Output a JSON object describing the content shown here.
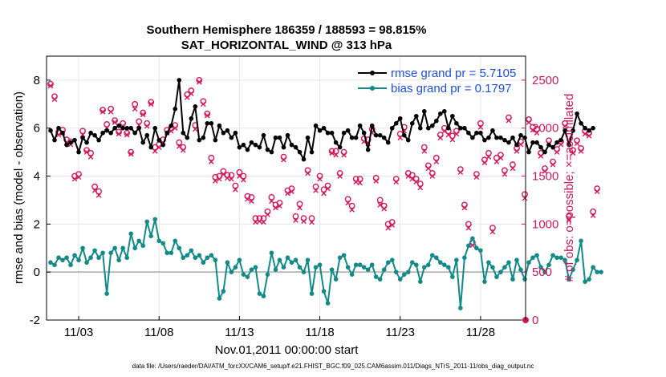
{
  "chart_data": {
    "type": "line",
    "title": "Southern Hemisphere 186359 / 188593 = 98.815%",
    "subtitle": "SAT_HORIZONTAL_WIND @ 313 hPa",
    "xlabel": "Nov.01,2011 00:00:00 start",
    "ylabel": "rmse and bias (model - observation)",
    "ylabel_right": "# of obs: o=possible; ×=assimilated",
    "footer": "data file: /Users/raeder/DAI/ATM_forcXX/CAM6_setup/f.e21.FHIST_BGC.f09_025.CAM6assim.011/Diags_NTrS_2011-11/obs_diag_output.nc",
    "xlim": [
      1.0,
      30.8
    ],
    "ylim": [
      -2,
      9
    ],
    "ylim_right": [
      0,
      2750
    ],
    "x_ticks": [
      {
        "x": 3,
        "label": "11/03"
      },
      {
        "x": 8,
        "label": "11/08"
      },
      {
        "x": 13,
        "label": "11/13"
      },
      {
        "x": 18,
        "label": "11/18"
      },
      {
        "x": 23,
        "label": "11/23"
      },
      {
        "x": 28,
        "label": "11/28"
      }
    ],
    "y_ticks": [
      "-2",
      "0",
      "2",
      "4",
      "6",
      "8"
    ],
    "y_ticks_right": [
      "0",
      "500",
      "1000",
      "1500",
      "2000",
      "2500"
    ],
    "grid": true,
    "legend_position": "top-right",
    "colors": {
      "rmse": "#000000",
      "bias": "#138a87",
      "obs": "#d4175c",
      "zero_line": "#bbbbbb"
    },
    "x_start": 1.25,
    "x_step": 0.25,
    "series": [
      {
        "name": "rmse grand pr = 5.7105",
        "values": [
          5.9,
          5.5,
          6.0,
          5.8,
          5.3,
          5.4,
          5.5,
          5.0,
          5.6,
          5.4,
          5.8,
          5.7,
          5.5,
          5.8,
          5.9,
          5.8,
          6.0,
          6.1,
          6.0,
          6.0,
          6.0,
          5.8,
          6.0,
          5.4,
          5.7,
          5.2,
          6.0,
          5.5,
          5.3,
          5.8,
          6.1,
          6.8,
          8.0,
          5.8,
          5.6,
          6.4,
          6.9,
          5.5,
          5.6,
          6.2,
          6.2,
          5.5,
          6.1,
          5.8,
          5.9,
          5.6,
          5.8,
          5.2,
          5.3,
          5.1,
          5.4,
          5.3,
          5.2,
          5.7,
          5.1,
          5.0,
          5.6,
          5.6,
          5.2,
          5.7,
          5.3,
          5.2,
          5.0,
          4.7,
          5.6,
          5.0,
          6.1,
          5.9,
          6.0,
          5.8,
          5.8,
          5.4,
          5.2,
          5.8,
          5.9,
          5.6,
          5.6,
          6.1,
          5.8,
          5.1,
          6.1,
          5.7,
          5.7,
          5.6,
          5.4,
          6.0,
          6.2,
          6.4,
          5.7,
          5.5,
          6.2,
          6.5,
          6.0,
          6.7,
          6.0,
          6.1,
          6.3,
          6.6,
          6.7,
          6.0,
          6.5,
          6.2,
          6.0,
          6.0,
          5.8,
          5.6,
          5.8,
          5.8,
          5.5,
          5.6,
          5.9,
          5.6,
          5.6,
          5.5,
          5.4,
          5.6,
          5.3,
          5.7,
          5.6,
          5.0,
          5.4,
          5.4,
          5.2,
          5.0,
          5.3,
          5.2,
          5.4,
          5.5,
          5.9,
          5.3,
          5.9,
          6.6,
          6.2,
          6.0,
          5.9,
          6.0
        ]
      },
      {
        "name": "bias grand pr = 0.1797",
        "values": [
          0.4,
          0.3,
          0.6,
          0.5,
          0.6,
          0.3,
          0.7,
          0.5,
          1.0,
          0.4,
          0.6,
          0.9,
          0.6,
          0.8,
          -0.9,
          0.8,
          1.0,
          0.5,
          1.0,
          0.6,
          1.6,
          1.0,
          1.3,
          1.1,
          2.1,
          1.5,
          2.2,
          1.3,
          1.2,
          0.8,
          0.8,
          1.3,
          1.0,
          0.6,
          0.7,
          0.9,
          0.6,
          0.7,
          0.4,
          0.6,
          0.7,
          0.5,
          -1.1,
          -0.8,
          0.4,
          0.0,
          0.2,
          0.5,
          -0.1,
          -0.2,
          0.1,
          0.2,
          -0.9,
          -1.0,
          -0.1,
          0.8,
          0.1,
          0.5,
          0.2,
          0.6,
          0.4,
          0.5,
          0.2,
          0.0,
          0.5,
          -0.9,
          0.2,
          0.3,
          -0.8,
          -1.3,
          0.1,
          -0.3,
          0.6,
          0.7,
          0.2,
          -0.1,
          0.3,
          0.3,
          0.2,
          0.1,
          0.3,
          -0.2,
          -0.3,
          0.1,
          0.4,
          0.5,
          0.0,
          -0.3,
          -0.1,
          0.0,
          0.4,
          0.3,
          -0.4,
          0.2,
          0.3,
          0.7,
          0.6,
          0.4,
          0.3,
          0.2,
          -0.2,
          0.5,
          -1.5,
          0.6,
          1.1,
          1.4,
          1.0,
          0.9,
          -0.4,
          0.4,
          0.2,
          -0.2,
          0.0,
          0.2,
          0.4,
          -0.3,
          0.5,
          0.1,
          -0.3,
          0.4,
          0.6,
          0.7,
          0.2,
          0.0,
          0.3,
          0.7,
          0.6,
          0.6,
          0.5,
          -0.3,
          0.1,
          0.5,
          1.3,
          -0.4,
          -0.3,
          0.2,
          0.0,
          0.0
        ]
      },
      {
        "name": "",
        "possible": [
          2460,
          2330,
          1960,
          1980,
          1880,
          1860,
          1500,
          1520,
          1970,
          1770,
          1740,
          1390,
          1340,
          2190,
          2040,
          2200,
          2080,
          1960,
          2050,
          1950,
          1750,
          2250,
          2070,
          2160,
          2050,
          2270,
          1800,
          1830,
          1880,
          1980,
          2000,
          2030,
          1850,
          1800,
          2350,
          2390,
          2030,
          2500,
          2280,
          2150,
          1690,
          1490,
          1500,
          1550,
          1510,
          1510,
          1400,
          1540,
          1500,
          1290,
          1280,
          1060,
          1060,
          1060,
          1130,
          1280,
          1200,
          1220,
          1700,
          1350,
          1370,
          1080,
          1210,
          1060,
          1560,
          1060,
          1390,
          1500,
          1360,
          1400,
          1760,
          1760,
          1530,
          1750,
          1260,
          1190,
          1470,
          1470,
          1890,
          1880,
          1990,
          1480,
          1250,
          1190,
          1000,
          1020,
          1470,
          1940,
          2010,
          1530,
          1510,
          1470,
          1420,
          1800,
          1610,
          1530,
          1690,
          1930,
          2000,
          1970,
          1920,
          1970,
          1570,
          1200,
          1000,
          810,
          1520,
          2050,
          1670,
          1740,
          960,
          1690,
          1720,
          1560,
          2110,
          1620,
          1790,
          1860,
          1310,
          2090,
          2010,
          1990,
          1740,
          1580,
          1870,
          1650,
          1780,
          1860,
          2050,
          1080,
          1770,
          1870,
          1790,
          1970,
          1950,
          1130,
          1370
        ],
        "assimilated": [
          2440,
          2300,
          1930,
          1950,
          1850,
          1830,
          1470,
          1490,
          1930,
          1750,
          1700,
          1350,
          1300,
          2170,
          2000,
          2170,
          2060,
          1940,
          2020,
          1930,
          1730,
          2200,
          2030,
          2140,
          2020,
          2250,
          1760,
          1800,
          1850,
          1950,
          1970,
          2000,
          1810,
          1770,
          2320,
          2360,
          1990,
          2480,
          2250,
          2130,
          1650,
          1450,
          1470,
          1520,
          1480,
          1470,
          1360,
          1500,
          1460,
          1260,
          1240,
          1020,
          1030,
          1020,
          1100,
          1240,
          1170,
          1190,
          1670,
          1320,
          1340,
          1040,
          1170,
          1030,
          1530,
          1020,
          1350,
          1470,
          1320,
          1370,
          1740,
          1720,
          1500,
          1720,
          1220,
          1150,
          1440,
          1430,
          1860,
          1840,
          1950,
          1450,
          1200,
          1160,
          960,
          990,
          1440,
          1900,
          1970,
          1500,
          1470,
          1440,
          1380,
          1760,
          1580,
          1500,
          1650,
          1900,
          1970,
          1930,
          1880,
          1940,
          1540,
          1170,
          960,
          780,
          1490,
          2010,
          1640,
          1700,
          920,
          1650,
          1690,
          1520,
          2080,
          1580,
          1760,
          1830,
          1270,
          2060,
          1980,
          1950,
          1710,
          1550,
          1840,
          1620,
          1750,
          1830,
          2020,
          1040,
          1740,
          1840,
          1760,
          1940,
          1920,
          1090,
          1340
        ]
      }
    ]
  }
}
